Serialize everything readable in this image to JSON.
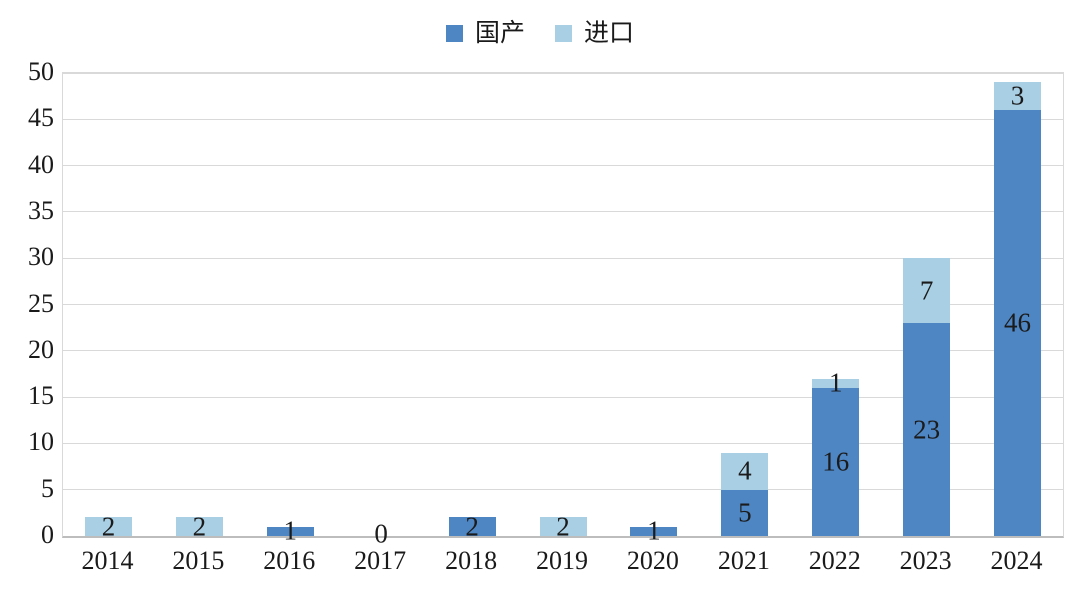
{
  "chart_data": {
    "type": "bar",
    "stacked": true,
    "title": "",
    "xlabel": "",
    "ylabel": "",
    "categories": [
      "2014",
      "2015",
      "2016",
      "2017",
      "2018",
      "2019",
      "2020",
      "2021",
      "2022",
      "2023",
      "2024"
    ],
    "series": [
      {
        "name": "国产",
        "color": "#4e86c4",
        "values": [
          0,
          0,
          1,
          0,
          2,
          0,
          1,
          5,
          16,
          23,
          46
        ]
      },
      {
        "name": "进口",
        "color": "#a9cfe4",
        "values": [
          2,
          2,
          0,
          0,
          0,
          2,
          0,
          4,
          1,
          7,
          3
        ]
      }
    ],
    "totals": [
      2,
      2,
      1,
      0,
      2,
      2,
      1,
      9,
      17,
      30,
      49
    ],
    "ylim": [
      0,
      50
    ],
    "ytick_step": 5,
    "ytick_labels": [
      "0",
      "5",
      "10",
      "15",
      "20",
      "25",
      "30",
      "35",
      "40",
      "45",
      "50"
    ],
    "grid": true,
    "data_labels": true,
    "zero_label": "0",
    "legend_position": "top",
    "colors": {
      "grid": "#d9d9d9",
      "axis_line": "#bdbdbd",
      "text": "#1a1a1a"
    }
  }
}
